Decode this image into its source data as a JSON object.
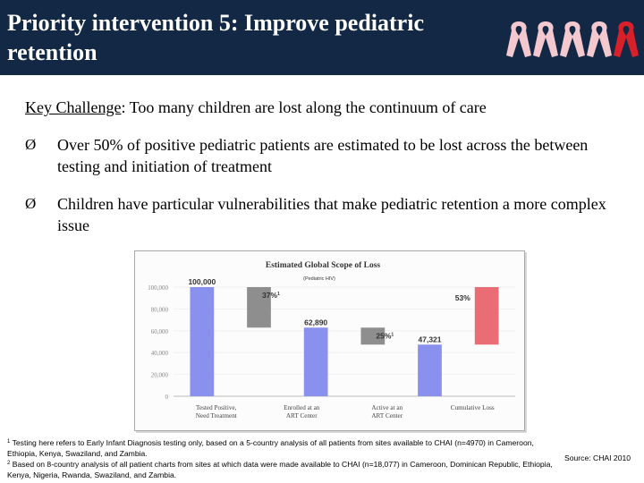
{
  "slide": {
    "title": "Priority intervention 5: Improve pediatric retention",
    "key_challenge_label": "Key Challenge",
    "key_challenge_colon": ":",
    "key_challenge_text": " Too many children are lost along the continuum of care",
    "bullet_glyph": "Ø",
    "bullets": [
      "Over 50% of positive pediatric patients are estimated to be lost across the between testing and initiation of treatment",
      "Children have particular vulnerabilities that make pediatric retention a more complex issue"
    ],
    "footnote_1_marker": "1",
    "footnote_1": " Testing here refers to Early Infant Diagnosis testing only, based on a 5-country analysis of all patients from sites available to CHAI (n=4970) in Cameroon, Ethiopia, Kenya, Swaziland, and Zambia.",
    "footnote_2_marker": "2",
    "footnote_2": " Based on 8-country analysis of all patient charts from sites at which data were made available to CHAI (n=18,077) in Cameroon, Dominican Republic, Ethiopia, Kenya, Nigeria, Rwanda, Swaziland, and Zambia.",
    "source": "Source: CHAI 2010",
    "ribbon_colors": [
      "#f3c9cf",
      "#f3c9cf",
      "#f3c9cf",
      "#f3c9cf",
      "#d8202a"
    ]
  },
  "chart_data": {
    "type": "bar",
    "title": "Estimated Global Scope of Loss",
    "subtitle": "(Pediatric HIV)",
    "ylim": [
      0,
      100000
    ],
    "yticks": [
      "0",
      "20,000",
      "40,000",
      "60,000",
      "80,000",
      "100,000"
    ],
    "categories": [
      "Tested Positive, Need Treatment",
      "Enrolled at an ART Center",
      "Active at an ART Center",
      "Cumulative Loss"
    ],
    "category_label_lines": [
      [
        "Tested Positive,",
        "Need Treatment"
      ],
      [
        "Enrolled at an",
        "ART Center"
      ],
      [
        "Active at an",
        "ART Center"
      ],
      [
        "Cumulative Loss"
      ]
    ],
    "bars": [
      {
        "name": "tested-positive",
        "kind": "total",
        "start": 0,
        "end": 100000,
        "label": "100,000",
        "color": "#8a90ee"
      },
      {
        "name": "loss-1",
        "kind": "loss",
        "start": 62890,
        "end": 100000,
        "label": "37%",
        "sup": "1",
        "color": "#8e8e8e"
      },
      {
        "name": "enrolled",
        "kind": "total",
        "start": 0,
        "end": 62890,
        "label": "62,890",
        "color": "#8a90ee"
      },
      {
        "name": "loss-2",
        "kind": "loss",
        "start": 47321,
        "end": 62890,
        "label": "25%",
        "sup": "1",
        "color": "#8e8e8e"
      },
      {
        "name": "active",
        "kind": "total",
        "start": 0,
        "end": 47321,
        "label": "47,321",
        "color": "#8a90ee"
      },
      {
        "name": "cumulative-loss",
        "kind": "cumulative",
        "start": 47321,
        "end": 100000,
        "label": "53%",
        "color": "#ea6d76"
      }
    ]
  }
}
